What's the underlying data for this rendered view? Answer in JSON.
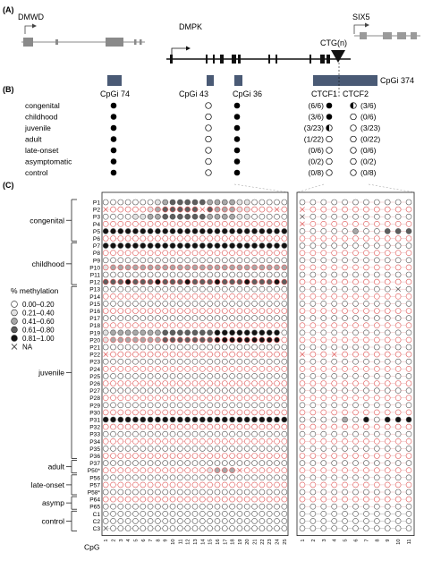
{
  "panel_labels": {
    "a": "(A)",
    "b": "(B)",
    "c": "(C)"
  },
  "genes": {
    "dmwd": "DMWD",
    "dmpk": "DMPK",
    "six5": "SIX5",
    "ctg": "CTG(n)"
  },
  "cpg_islands": [
    "CpGi 74",
    "CpGi 43",
    "CpGi 36",
    "CpGi 374"
  ],
  "ctcf_labels": [
    "CTCF1",
    "CTCF2"
  ],
  "panel_b": {
    "rows": [
      {
        "group": "congenital",
        "gi74": "full",
        "gi43": "open",
        "gi36": "full",
        "ctcf1_count": "(6/6)",
        "ctcf1_mark": "full",
        "ctcf2_mark": "half",
        "ctcf2_count": "(3/6)"
      },
      {
        "group": "childhood",
        "gi74": "full",
        "gi43": "open",
        "gi36": "full",
        "ctcf1_count": "(3/6)",
        "ctcf1_mark": "full",
        "ctcf2_mark": "open",
        "ctcf2_count": "(0/6)"
      },
      {
        "group": "juvenile",
        "gi74": "full",
        "gi43": "open",
        "gi36": "full",
        "ctcf1_count": "(3/23)",
        "ctcf1_mark": "half",
        "ctcf2_mark": "open",
        "ctcf2_count": "(3/23)"
      },
      {
        "group": "adult",
        "gi74": "full",
        "gi43": "open",
        "gi36": "full",
        "ctcf1_count": "(1/22)",
        "ctcf1_mark": "open",
        "ctcf2_mark": "open",
        "ctcf2_count": "(0/22)"
      },
      {
        "group": "late-onset",
        "gi74": "full",
        "gi43": "open",
        "gi36": "full",
        "ctcf1_count": "(0/6)",
        "ctcf1_mark": "open",
        "ctcf2_mark": "open",
        "ctcf2_count": "(0/6)"
      },
      {
        "group": "asymptomatic",
        "gi74": "full",
        "gi43": "open",
        "gi36": "full",
        "ctcf1_count": "(0/2)",
        "ctcf1_mark": "open",
        "ctcf2_mark": "open",
        "ctcf2_count": "(0/2)"
      },
      {
        "group": "control",
        "gi74": "full",
        "gi43": "open",
        "gi36": "full",
        "ctcf1_count": "(0/8)",
        "ctcf1_mark": "open",
        "ctcf2_mark": "open",
        "ctcf2_count": "(0/8)"
      }
    ]
  },
  "legend": {
    "title": "% methylation",
    "items": [
      {
        "label": "0.00–0.20",
        "level": 0
      },
      {
        "label": "0.21–0.40",
        "level": 1
      },
      {
        "label": "0.41–0.60",
        "level": 2
      },
      {
        "label": "0.61–0.80",
        "level": 3
      },
      {
        "label": "0.81–1.00",
        "level": 4
      },
      {
        "label": "NA",
        "level": -1
      }
    ]
  },
  "level_fills": [
    "#ffffff",
    "#e2e2e2",
    "#a8a8a8",
    "#5e5e5e",
    "#121212"
  ],
  "allele_colors": {
    "normal": "#555555",
    "expanded": "#e05a5a"
  },
  "groups": [
    {
      "name": "congenital",
      "rows": [
        "P1",
        "P6"
      ]
    },
    {
      "name": "childhood",
      "rows": [
        "P7",
        "P12"
      ]
    },
    {
      "name": "juvenile",
      "rows": [
        "P13",
        "P36"
      ]
    },
    {
      "name": "adult",
      "rows": [
        "P37",
        "P50*"
      ]
    },
    {
      "name": "late-onset",
      "rows": [
        "P56",
        "P58*"
      ]
    },
    {
      "name": "asymp",
      "rows": [
        "P64",
        "P65"
      ]
    },
    {
      "name": "control",
      "rows": [
        "C1",
        "C3"
      ]
    }
  ],
  "patients": [
    {
      "id": "P1",
      "left": "0000000123333322221100000",
      "right": "00000000000"
    },
    {
      "id": "P2",
      "left": "x000001233333x322211000x0",
      "right": "x0000000000"
    },
    {
      "id": "P3",
      "left": "0000112233333322221100000",
      "right": "x0000000000"
    },
    {
      "id": "P4",
      "left": "0000000000000000000000000",
      "right": "x0000000000"
    },
    {
      "id": "P5",
      "left": "4444444444444444444444444",
      "right": "00000200333"
    },
    {
      "id": "P6",
      "left": "0000000000000000000000000",
      "right": "00000000000"
    },
    {
      "id": "P7",
      "left": "4444444444444444444444444",
      "right": "00000000000"
    },
    {
      "id": "P8",
      "left": "0000000000000000000000000",
      "right": "00000000000"
    },
    {
      "id": "P9",
      "left": "0000000000000000000000000",
      "right": "00000000000"
    },
    {
      "id": "P10",
      "left": "1222222222222222222222222",
      "right": "00000000000"
    },
    {
      "id": "P11",
      "left": "0000000000000000000000000",
      "right": "00000000000"
    },
    {
      "id": "P12",
      "left": "3334333433343334333433343",
      "right": "00000000000"
    },
    {
      "id": "P13",
      "left": "0000000000000000000000000",
      "right": "000000000x0"
    },
    {
      "id": "P14",
      "left": "0000000000000000000000000",
      "right": "00000000000"
    },
    {
      "id": "P15",
      "left": "0000000000000000000000000",
      "right": "00000000000"
    },
    {
      "id": "P16",
      "left": "0000000000000000000000000",
      "right": "00000000000"
    },
    {
      "id": "P17",
      "left": "0000000000000000000000000",
      "right": "00000000000"
    },
    {
      "id": "P18",
      "left": "0000000000000000000000000",
      "right": "00000000000"
    },
    {
      "id": "P19",
      "left": "1222222233333334444444440",
      "right": "00000000000"
    },
    {
      "id": "P20",
      "left": "1222222233333334444444440",
      "right": "00000000000"
    },
    {
      "id": "P21",
      "left": "0000000000000000000000000",
      "right": "00000000000"
    },
    {
      "id": "P22",
      "left": "x000000000000000000000000",
      "right": "x00x0000000"
    },
    {
      "id": "P23",
      "left": "0000000000000000000000000",
      "right": "00000000000"
    },
    {
      "id": "P24",
      "left": "0000000000000000000000000",
      "right": "00000000000"
    },
    {
      "id": "P25",
      "left": "0000000000000000000000000",
      "right": "00000000000"
    },
    {
      "id": "P26",
      "left": "0000000000000000000000000",
      "right": "00000000000"
    },
    {
      "id": "P27",
      "left": "0000000000000000000000000",
      "right": "00000000000"
    },
    {
      "id": "P28",
      "left": "0000000000000000000000000",
      "right": "00000000000"
    },
    {
      "id": "P29",
      "left": "0000000000000000000000000",
      "right": "00000000000"
    },
    {
      "id": "P30",
      "left": "0000000000000000000000000",
      "right": "00000000000"
    },
    {
      "id": "P31",
      "left": "4444444444444444444444444",
      "right": "00002040444"
    },
    {
      "id": "P32",
      "left": "0000000000000000000000000",
      "right": "00000000000"
    },
    {
      "id": "P33",
      "left": "0000000000000000000000000",
      "right": "00000000000"
    },
    {
      "id": "P34",
      "left": "0000000000000000000000000",
      "right": "00000000000"
    },
    {
      "id": "P35",
      "left": "0000000000000000000000000",
      "right": "00000000000"
    },
    {
      "id": "P36",
      "left": "0000000000000000000000000",
      "right": "00000000000"
    },
    {
      "id": "P37",
      "left": "0000000000000000000000000",
      "right": "00000000000"
    },
    {
      "id": "P50*",
      "left": "000000000000001222x000000",
      "right": "00000000000"
    },
    {
      "id": "P56",
      "left": "0000000000000000000000000",
      "right": "00000000000"
    },
    {
      "id": "P57",
      "left": "0000000000000000000000000",
      "right": "00000000000"
    },
    {
      "id": "P58*",
      "left": "0000000000000000000000000",
      "right": "00000000000"
    },
    {
      "id": "P64",
      "left": "0000000000000000000000000",
      "right": "00000000000"
    },
    {
      "id": "P65",
      "left": "0000000000000000000000000",
      "right": "00000000000"
    },
    {
      "id": "C1",
      "left": "0000000000000000000000000",
      "right": "00000000000"
    },
    {
      "id": "C2",
      "left": "0000000000000000000000000",
      "right": "00000000000"
    },
    {
      "id": "C3",
      "left": "x000000000000000000000000",
      "right": "00000000000"
    }
  ],
  "cpg_axis": {
    "label": "CpG",
    "left_ticks": [
      "1",
      "2",
      "3",
      "4",
      "5",
      "6",
      "7",
      "8",
      "9",
      "10",
      "11",
      "12",
      "13",
      "14",
      "15",
      "16",
      "17",
      "18",
      "19",
      "20",
      "21",
      "22",
      "23",
      "24",
      "25"
    ],
    "right_ticks": [
      "1",
      "2",
      "3",
      "4",
      "5",
      "6",
      "7",
      "8",
      "9",
      "10",
      "11"
    ]
  }
}
